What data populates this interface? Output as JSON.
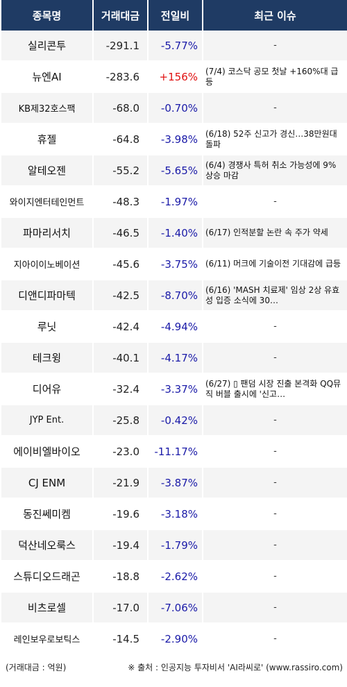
{
  "header": {
    "col_name": "종목명",
    "col_volume": "거래대금",
    "col_change": "전일비",
    "col_issue": "최근 이슈"
  },
  "colors": {
    "header_bg": "#1f3b64",
    "down": "#1a1aa8",
    "up": "#e01010",
    "stripe": "#f4f4f4"
  },
  "rows": [
    {
      "name": "실리콘투",
      "volume": "-291.1",
      "change": "-5.77%",
      "dir": "down",
      "issue": "-"
    },
    {
      "name": "뉴엔AI",
      "volume": "-283.6",
      "change": "+156%",
      "dir": "up",
      "issue": "(7/4) 코스닥 공모 첫날 +160%대 급등"
    },
    {
      "name": "KB제32호스팩",
      "volume": "-68.0",
      "change": "-0.70%",
      "dir": "down",
      "issue": "-",
      "small": true
    },
    {
      "name": "휴젤",
      "volume": "-64.8",
      "change": "-3.98%",
      "dir": "down",
      "issue": "(6/18) 52주 신고가 경신…38만원대 돌파"
    },
    {
      "name": "알테오젠",
      "volume": "-55.2",
      "change": "-5.65%",
      "dir": "down",
      "issue": "(6/4) 경쟁사 특허 취소 가능성에 9% 상승 마감"
    },
    {
      "name": "와이지엔터테인먼트",
      "volume": "-48.3",
      "change": "-1.97%",
      "dir": "down",
      "issue": "-",
      "small": true
    },
    {
      "name": "파마리서치",
      "volume": "-46.5",
      "change": "-1.40%",
      "dir": "down",
      "issue": "(6/17) 인적분할 논란 속 주가 약세"
    },
    {
      "name": "지아이이노베이션",
      "volume": "-45.6",
      "change": "-3.75%",
      "dir": "down",
      "issue": "(6/11) 머크에 기술이전 기대감에 급등",
      "small": true
    },
    {
      "name": "디앤디파마텍",
      "volume": "-42.5",
      "change": "-8.70%",
      "dir": "down",
      "issue": "(6/16) 'MASH 치료제' 임상 2상 유효성 입증 소식에 30…"
    },
    {
      "name": "루닛",
      "volume": "-42.4",
      "change": "-4.94%",
      "dir": "down",
      "issue": "-"
    },
    {
      "name": "테크윙",
      "volume": "-40.1",
      "change": "-4.17%",
      "dir": "down",
      "issue": "-"
    },
    {
      "name": "디어유",
      "volume": "-32.4",
      "change": "-3.37%",
      "dir": "down",
      "issue": "(6/27) ▯ 팬덤 시장 진출 본격화 QQ뮤직 버블 출시에 '신고…"
    },
    {
      "name": "JYP Ent.",
      "volume": "-25.8",
      "change": "-0.42%",
      "dir": "down",
      "issue": "-",
      "small": true
    },
    {
      "name": "에이비엘바이오",
      "volume": "-23.0",
      "change": "-11.17%",
      "dir": "down",
      "issue": "-"
    },
    {
      "name": "CJ ENM",
      "volume": "-21.9",
      "change": "-3.87%",
      "dir": "down",
      "issue": "-"
    },
    {
      "name": "동진쎄미켐",
      "volume": "-19.6",
      "change": "-3.18%",
      "dir": "down",
      "issue": "-"
    },
    {
      "name": "덕산네오룩스",
      "volume": "-19.4",
      "change": "-1.79%",
      "dir": "down",
      "issue": "-"
    },
    {
      "name": "스튜디오드래곤",
      "volume": "-18.8",
      "change": "-2.62%",
      "dir": "down",
      "issue": "-"
    },
    {
      "name": "비츠로셀",
      "volume": "-17.0",
      "change": "-7.06%",
      "dir": "down",
      "issue": "-"
    },
    {
      "name": "레인보우로보틱스",
      "volume": "-14.5",
      "change": "-2.90%",
      "dir": "down",
      "issue": "-",
      "small": true
    }
  ],
  "footer": {
    "unit": "(거래대금 : 억원)",
    "source": "※ 출처 : 인공지능 투자비서 'AI라씨로' (www.rassiro.com)"
  }
}
